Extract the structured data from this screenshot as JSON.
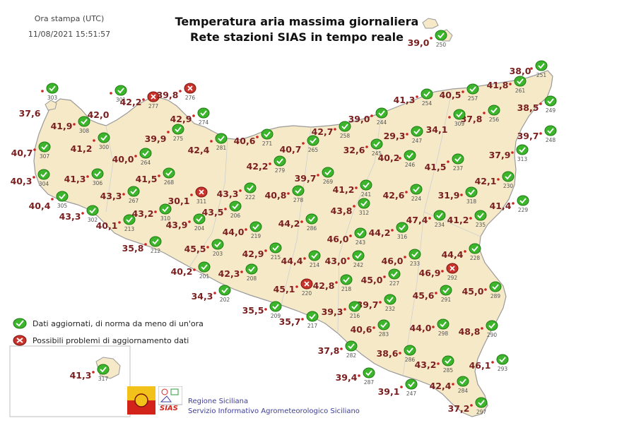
{
  "header": {
    "stamp_label": "Ora stampa (UTC)",
    "stamp_value": "11/08/2021 15:51:57",
    "title_line1": "Temperatura aria massima giornaliera",
    "title_line2": "Rete stazioni SIAS in tempo reale"
  },
  "legend": {
    "ok_label": "Dati aggiornati, di norma da meno di un'ora",
    "warn_label": "Possibili problemi di aggiornamento dati"
  },
  "footer": {
    "org_line1": "Regione Siciliana",
    "org_line2": "Servizio Informativo Agrometeorologico Siciliano",
    "logo_text": "SIAS"
  },
  "colors": {
    "land": "#f5e9c8",
    "coast": "#9a9a9a",
    "value_text": "#7a1f1f",
    "ok_icon": "#3cb52c",
    "warn_icon": "#c8332b",
    "dot": "#cc2222"
  },
  "stations": [
    {
      "id": "303",
      "value": "37,6",
      "s": "ok"
    },
    {
      "id": "308",
      "value": "41,9",
      "s": "ok"
    },
    {
      "id": "301",
      "value": "42,0",
      "s": "ok"
    },
    {
      "id": "277",
      "value": "42,2",
      "s": "warn"
    },
    {
      "id": "276",
      "value": "39,8",
      "s": "warn"
    },
    {
      "id": "274",
      "value": "42,9",
      "s": "ok"
    },
    {
      "id": "307",
      "value": "40,7",
      "s": "ok"
    },
    {
      "id": "300",
      "value": "41,2",
      "s": "ok"
    },
    {
      "id": "275",
      "value": "39,9",
      "s": "ok"
    },
    {
      "id": "281",
      "value": "42,4",
      "s": "ok"
    },
    {
      "id": "271",
      "value": "40,6",
      "s": "ok"
    },
    {
      "id": "265",
      "value": "40,7",
      "s": "ok"
    },
    {
      "id": "258",
      "value": "42,7",
      "s": "ok"
    },
    {
      "id": "244",
      "value": "39,0",
      "s": "ok"
    },
    {
      "id": "254",
      "value": "41,3",
      "s": "ok"
    },
    {
      "id": "257",
      "value": "40,5",
      "s": "ok"
    },
    {
      "id": "261",
      "value": "41,8",
      "s": "ok"
    },
    {
      "id": "251",
      "value": "38,0",
      "s": "ok"
    },
    {
      "id": "249",
      "value": "38,5",
      "s": "ok"
    },
    {
      "id": "248",
      "value": "39,7",
      "s": "ok"
    },
    {
      "id": "256",
      "value": "37,8",
      "s": "ok"
    },
    {
      "id": "309",
      "value": "34,1",
      "s": "ok"
    },
    {
      "id": "247",
      "value": "29,3",
      "s": "ok"
    },
    {
      "id": "245",
      "value": "32,6",
      "s": "ok"
    },
    {
      "id": "246",
      "value": "40,2",
      "s": "ok"
    },
    {
      "id": "313",
      "value": "37,9",
      "s": "ok"
    },
    {
      "id": "304",
      "value": "40,3",
      "s": "ok"
    },
    {
      "id": "306",
      "value": "41,3",
      "s": "ok"
    },
    {
      "id": "264",
      "value": "40,0",
      "s": "ok"
    },
    {
      "id": "268",
      "value": "41,5",
      "s": "ok"
    },
    {
      "id": "279",
      "value": "42,2",
      "s": "ok"
    },
    {
      "id": "269",
      "value": "39,7",
      "s": "ok"
    },
    {
      "id": "237",
      "value": "41,5",
      "s": "ok"
    },
    {
      "id": "230",
      "value": "42,1",
      "s": "ok"
    },
    {
      "id": "305",
      "value": "40,4",
      "s": "ok"
    },
    {
      "id": "302",
      "value": "43,3",
      "s": "ok"
    },
    {
      "id": "267",
      "value": "43,3",
      "s": "ok"
    },
    {
      "id": "311",
      "value": "30,1",
      "s": "warn"
    },
    {
      "id": "222",
      "value": "43,3",
      "s": "ok"
    },
    {
      "id": "278",
      "value": "40,8",
      "s": "ok"
    },
    {
      "id": "241",
      "value": "41,2",
      "s": "ok"
    },
    {
      "id": "224",
      "value": "42,6",
      "s": "ok"
    },
    {
      "id": "318",
      "value": "31,9",
      "s": "ok"
    },
    {
      "id": "229",
      "value": "41,4",
      "s": "ok"
    },
    {
      "id": "213",
      "value": "40,1",
      "s": "ok"
    },
    {
      "id": "310",
      "value": "43,2",
      "s": "ok"
    },
    {
      "id": "204",
      "value": "43,9",
      "s": "ok"
    },
    {
      "id": "206",
      "value": "43,5",
      "s": "ok"
    },
    {
      "id": "312",
      "value": "43,8",
      "s": "ok"
    },
    {
      "id": "286",
      "value": "44,2",
      "s": "ok"
    },
    {
      "id": "234",
      "value": "47,4",
      "s": "ok"
    },
    {
      "id": "235",
      "value": "41,2",
      "s": "ok"
    },
    {
      "id": "219",
      "value": "44,0",
      "s": "ok"
    },
    {
      "id": "243",
      "value": "46,0",
      "s": "ok"
    },
    {
      "id": "316",
      "value": "44,2",
      "s": "ok"
    },
    {
      "id": "212",
      "value": "35,8",
      "s": "ok"
    },
    {
      "id": "203",
      "value": "45,5",
      "s": "ok"
    },
    {
      "id": "215",
      "value": "42,9",
      "s": "ok"
    },
    {
      "id": "214",
      "value": "44,4",
      "s": "ok"
    },
    {
      "id": "242",
      "value": "43,0",
      "s": "ok"
    },
    {
      "id": "233",
      "value": "46,0",
      "s": "ok"
    },
    {
      "id": "228",
      "value": "44,4",
      "s": "ok"
    },
    {
      "id": "201",
      "value": "40,2",
      "s": "ok"
    },
    {
      "id": "208",
      "value": "42,3",
      "s": "ok"
    },
    {
      "id": "220",
      "value": "45,1",
      "s": "warn"
    },
    {
      "id": "218",
      "value": "42,8",
      "s": "ok"
    },
    {
      "id": "227",
      "value": "45,0",
      "s": "ok"
    },
    {
      "id": "292",
      "value": "46,9",
      "s": "warn"
    },
    {
      "id": "202",
      "value": "34,3",
      "s": "ok"
    },
    {
      "id": "232",
      "value": "39,7",
      "s": "ok"
    },
    {
      "id": "291",
      "value": "45,6",
      "s": "ok"
    },
    {
      "id": "289",
      "value": "45,0",
      "s": "ok"
    },
    {
      "id": "209",
      "value": "35,5",
      "s": "ok"
    },
    {
      "id": "216",
      "value": "39,3",
      "s": "ok"
    },
    {
      "id": "217",
      "value": "35,7",
      "s": "ok"
    },
    {
      "id": "283",
      "value": "40,6",
      "s": "ok"
    },
    {
      "id": "298",
      "value": "44,0",
      "s": "ok"
    },
    {
      "id": "290",
      "value": "48,8",
      "s": "ok"
    },
    {
      "id": "282",
      "value": "37,8",
      "s": "ok"
    },
    {
      "id": "286b",
      "label": "286",
      "value": "38,6",
      "s": "ok"
    },
    {
      "id": "285",
      "value": "43,2",
      "s": "ok"
    },
    {
      "id": "293",
      "value": "46,1",
      "s": "ok"
    },
    {
      "id": "287",
      "value": "39,4",
      "s": "ok"
    },
    {
      "id": "284",
      "value": "42,4",
      "s": "ok"
    },
    {
      "id": "247b",
      "label": "247",
      "value": "39,1",
      "s": "ok"
    },
    {
      "id": "297",
      "value": "37,2",
      "s": "ok"
    },
    {
      "id": "250",
      "value": "39,0",
      "s": "ok"
    },
    {
      "id": "317",
      "value": "41,3",
      "s": "ok"
    }
  ]
}
